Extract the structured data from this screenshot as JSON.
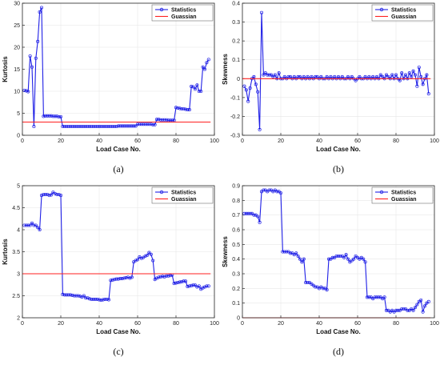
{
  "colors": {
    "statistics": "#1f1fe6",
    "guassian": "#ff2020",
    "axis": "#262626",
    "grid": "#e6e6e6"
  },
  "chart_data": [
    {
      "type": "line",
      "caption": "(a)",
      "xlabel": "Load Case No.",
      "ylabel": "Kurtosis",
      "xlim": [
        0,
        100
      ],
      "ylim": [
        0,
        30
      ],
      "xticks": [
        0,
        20,
        40,
        60,
        80,
        100
      ],
      "yticks": [
        0,
        5,
        10,
        15,
        20,
        25,
        30
      ],
      "grid": true,
      "legend": "top-right",
      "series": [
        {
          "name": "Statistics",
          "x": [
            1,
            2,
            3,
            4,
            5,
            6,
            7,
            8,
            9,
            10,
            11,
            12,
            13,
            14,
            15,
            16,
            17,
            18,
            19,
            20,
            21,
            22,
            23,
            24,
            25,
            26,
            27,
            28,
            29,
            30,
            31,
            32,
            33,
            34,
            35,
            36,
            37,
            38,
            39,
            40,
            41,
            42,
            43,
            44,
            45,
            46,
            47,
            48,
            49,
            50,
            51,
            52,
            53,
            54,
            55,
            56,
            57,
            58,
            59,
            60,
            61,
            62,
            63,
            64,
            65,
            66,
            67,
            68,
            69,
            70,
            71,
            72,
            73,
            74,
            75,
            76,
            77,
            78,
            79,
            80,
            81,
            82,
            83,
            84,
            85,
            86,
            87,
            88,
            89,
            90,
            91,
            92,
            93,
            94,
            95,
            96,
            97
          ],
          "y": [
            10.2,
            10.1,
            9.9,
            18.0,
            15.5,
            2.0,
            17.5,
            21.3,
            28.0,
            29.0,
            4.3,
            4.4,
            4.4,
            4.4,
            4.4,
            4.3,
            4.3,
            4.3,
            4.2,
            4.2,
            2.0,
            2.0,
            2.0,
            2.0,
            2.0,
            2.0,
            2.0,
            2.0,
            2.0,
            2.0,
            2.0,
            2.0,
            2.0,
            2.0,
            2.0,
            2.0,
            2.0,
            2.0,
            2.0,
            2.0,
            2.0,
            2.0,
            2.0,
            2.0,
            2.0,
            2.0,
            2.0,
            2.0,
            2.0,
            2.1,
            2.1,
            2.1,
            2.1,
            2.1,
            2.1,
            2.1,
            2.1,
            2.1,
            2.1,
            2.5,
            2.5,
            2.5,
            2.5,
            2.5,
            2.5,
            2.5,
            2.5,
            2.4,
            2.4,
            3.6,
            3.6,
            3.5,
            3.5,
            3.5,
            3.5,
            3.4,
            3.4,
            3.4,
            3.4,
            6.3,
            6.2,
            6.1,
            6.0,
            6.0,
            5.9,
            5.8,
            5.8,
            11.1,
            11.0,
            10.5,
            11.4,
            10.0,
            10.0,
            15.5,
            15.0,
            16.5,
            17.2
          ]
        },
        {
          "name": "Guassian",
          "x": [
            0,
            98
          ],
          "y": [
            3,
            3
          ]
        }
      ]
    },
    {
      "type": "line",
      "caption": "(b)",
      "xlabel": "Load Case No.",
      "ylabel": "Skewness",
      "xlim": [
        0,
        100
      ],
      "ylim": [
        -0.3,
        0.4
      ],
      "xticks": [
        0,
        20,
        40,
        60,
        80,
        100
      ],
      "yticks": [
        -0.3,
        -0.2,
        -0.1,
        0,
        0.1,
        0.2,
        0.3,
        0.4
      ],
      "grid": true,
      "legend": "top-right",
      "series": [
        {
          "name": "Statistics",
          "x": [
            1,
            2,
            3,
            4,
            5,
            6,
            7,
            8,
            9,
            10,
            11,
            12,
            13,
            14,
            15,
            16,
            17,
            18,
            19,
            20,
            21,
            22,
            23,
            24,
            25,
            26,
            27,
            28,
            29,
            30,
            31,
            32,
            33,
            34,
            35,
            36,
            37,
            38,
            39,
            40,
            41,
            42,
            43,
            44,
            45,
            46,
            47,
            48,
            49,
            50,
            51,
            52,
            53,
            54,
            55,
            56,
            57,
            58,
            59,
            60,
            61,
            62,
            63,
            64,
            65,
            66,
            67,
            68,
            69,
            70,
            71,
            72,
            73,
            74,
            75,
            76,
            77,
            78,
            79,
            80,
            81,
            82,
            83,
            84,
            85,
            86,
            87,
            88,
            89,
            90,
            91,
            92,
            93,
            94,
            95,
            96,
            97
          ],
          "y": [
            -0.04,
            -0.06,
            -0.12,
            -0.05,
            0.0,
            0.01,
            -0.03,
            -0.07,
            -0.27,
            0.35,
            0.02,
            0.03,
            0.02,
            0.02,
            0.02,
            0.01,
            0.02,
            0.0,
            0.03,
            0.0,
            0.0,
            0.01,
            0.0,
            0.01,
            0.01,
            0.0,
            0.01,
            0.0,
            0.01,
            0.01,
            0.0,
            0.01,
            0.0,
            0.01,
            0.0,
            0.01,
            0.0,
            0.01,
            0.01,
            0.0,
            0.01,
            0.0,
            0.0,
            0.01,
            0.0,
            0.01,
            0.0,
            0.01,
            0.0,
            0.01,
            0.0,
            0.01,
            0.0,
            0.0,
            0.01,
            0.0,
            0.01,
            0.0,
            -0.01,
            0.0,
            0.01,
            0.0,
            0.0,
            0.01,
            0.0,
            0.01,
            0.0,
            0.01,
            0.0,
            0.01,
            0.0,
            0.02,
            0.01,
            0.0,
            0.02,
            0.01,
            0.0,
            0.02,
            0.0,
            0.02,
            0.0,
            -0.01,
            0.03,
            0.0,
            0.02,
            0.0,
            0.03,
            0.01,
            0.04,
            0.02,
            -0.04,
            0.06,
            0.01,
            -0.03,
            0.0,
            0.02,
            -0.08
          ]
        },
        {
          "name": "Guassian",
          "x": [
            0,
            98
          ],
          "y": [
            0,
            0
          ]
        }
      ]
    },
    {
      "type": "line",
      "caption": "(c)",
      "xlabel": "Load Case No.",
      "ylabel": "Kurtosis",
      "xlim": [
        0,
        100
      ],
      "ylim": [
        2,
        5
      ],
      "xticks": [
        0,
        20,
        40,
        60,
        80,
        100
      ],
      "yticks": [
        2,
        2.5,
        3,
        3.5,
        4,
        4.5,
        5
      ],
      "grid": true,
      "legend": "top-right",
      "series": [
        {
          "name": "Statistics",
          "x": [
            1,
            2,
            3,
            4,
            5,
            6,
            7,
            8,
            9,
            10,
            11,
            12,
            13,
            14,
            15,
            16,
            17,
            18,
            19,
            20,
            21,
            22,
            23,
            24,
            25,
            26,
            27,
            28,
            29,
            30,
            31,
            32,
            33,
            34,
            35,
            36,
            37,
            38,
            39,
            40,
            41,
            42,
            43,
            44,
            45,
            46,
            47,
            48,
            49,
            50,
            51,
            52,
            53,
            54,
            55,
            56,
            57,
            58,
            59,
            60,
            61,
            62,
            63,
            64,
            65,
            66,
            67,
            68,
            69,
            70,
            71,
            72,
            73,
            74,
            75,
            76,
            77,
            78,
            79,
            80,
            81,
            82,
            83,
            84,
            85,
            86,
            87,
            88,
            89,
            90,
            91,
            92,
            93,
            94,
            95,
            96,
            97
          ],
          "y": [
            4.1,
            4.1,
            4.1,
            4.1,
            4.15,
            4.1,
            4.1,
            4.05,
            4.0,
            4.78,
            4.8,
            4.8,
            4.8,
            4.78,
            4.79,
            4.85,
            4.82,
            4.8,
            4.8,
            4.78,
            2.53,
            2.52,
            2.52,
            2.52,
            2.52,
            2.51,
            2.5,
            2.5,
            2.5,
            2.49,
            2.47,
            2.5,
            2.45,
            2.45,
            2.43,
            2.42,
            2.42,
            2.42,
            2.42,
            2.41,
            2.4,
            2.41,
            2.42,
            2.42,
            2.41,
            2.85,
            2.86,
            2.87,
            2.88,
            2.88,
            2.89,
            2.89,
            2.9,
            2.91,
            2.92,
            2.9,
            2.92,
            3.27,
            3.3,
            3.32,
            3.38,
            3.35,
            3.37,
            3.4,
            3.42,
            3.48,
            3.44,
            3.3,
            2.87,
            2.9,
            2.92,
            2.93,
            2.94,
            2.93,
            2.95,
            2.95,
            2.96,
            2.97,
            2.78,
            2.79,
            2.8,
            2.81,
            2.82,
            2.83,
            2.83,
            2.71,
            2.72,
            2.73,
            2.74,
            2.74,
            2.7,
            2.72,
            2.65,
            2.68,
            2.7,
            2.72,
            2.72
          ]
        },
        {
          "name": "Guassian",
          "x": [
            0,
            98
          ],
          "y": [
            3,
            3
          ]
        }
      ]
    },
    {
      "type": "line",
      "caption": "(d)",
      "xlabel": "Load Case No.",
      "ylabel": "Skewness",
      "xlim": [
        0,
        100
      ],
      "ylim": [
        0,
        0.9
      ],
      "xticks": [
        0,
        20,
        40,
        60,
        80,
        100
      ],
      "yticks": [
        0,
        0.1,
        0.2,
        0.3,
        0.4,
        0.5,
        0.6,
        0.7,
        0.8,
        0.9
      ],
      "grid": true,
      "legend": "top-right",
      "series": [
        {
          "name": "Statistics",
          "x": [
            1,
            2,
            3,
            4,
            5,
            6,
            7,
            8,
            9,
            10,
            11,
            12,
            13,
            14,
            15,
            16,
            17,
            18,
            19,
            20,
            21,
            22,
            23,
            24,
            25,
            26,
            27,
            28,
            29,
            30,
            31,
            32,
            33,
            34,
            35,
            36,
            37,
            38,
            39,
            40,
            41,
            42,
            43,
            44,
            45,
            46,
            47,
            48,
            49,
            50,
            51,
            52,
            53,
            54,
            55,
            56,
            57,
            58,
            59,
            60,
            61,
            62,
            63,
            64,
            65,
            66,
            67,
            68,
            69,
            70,
            71,
            72,
            73,
            74,
            75,
            76,
            77,
            78,
            79,
            80,
            81,
            82,
            83,
            84,
            85,
            86,
            87,
            88,
            89,
            90,
            91,
            92,
            93,
            94,
            95,
            96,
            97
          ],
          "y": [
            0.71,
            0.71,
            0.71,
            0.71,
            0.71,
            0.7,
            0.7,
            0.69,
            0.65,
            0.86,
            0.87,
            0.87,
            0.86,
            0.87,
            0.87,
            0.86,
            0.87,
            0.86,
            0.86,
            0.85,
            0.45,
            0.45,
            0.45,
            0.45,
            0.44,
            0.44,
            0.43,
            0.44,
            0.42,
            0.4,
            0.38,
            0.4,
            0.24,
            0.24,
            0.24,
            0.23,
            0.22,
            0.21,
            0.21,
            0.2,
            0.21,
            0.2,
            0.2,
            0.19,
            0.4,
            0.4,
            0.41,
            0.41,
            0.42,
            0.42,
            0.42,
            0.42,
            0.41,
            0.43,
            0.4,
            0.38,
            0.39,
            0.4,
            0.42,
            0.41,
            0.4,
            0.41,
            0.4,
            0.38,
            0.14,
            0.14,
            0.14,
            0.13,
            0.14,
            0.14,
            0.14,
            0.14,
            0.13,
            0.14,
            0.05,
            0.05,
            0.04,
            0.05,
            0.04,
            0.05,
            0.05,
            0.05,
            0.06,
            0.06,
            0.06,
            0.05,
            0.05,
            0.06,
            0.05,
            0.07,
            0.09,
            0.11,
            0.12,
            0.04,
            0.08,
            0.1,
            0.11
          ]
        },
        {
          "name": "Guassian",
          "x": [
            0,
            98
          ],
          "y": [
            0,
            0
          ]
        }
      ]
    }
  ]
}
